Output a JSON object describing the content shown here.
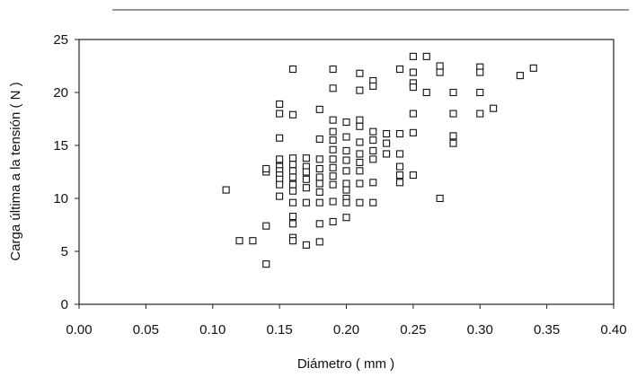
{
  "chart_data": {
    "type": "scatter",
    "title": "",
    "xlabel": "Diámetro ( mm )",
    "ylabel": "Carga última a la tensión ( N )",
    "xlim": [
      0,
      0.4
    ],
    "ylim": [
      0,
      25
    ],
    "x_ticks": [
      "0.00",
      "0.05",
      "0.10",
      "0.15",
      "0.20",
      "0.25",
      "0.30",
      "0.35",
      "0.40"
    ],
    "y_ticks": [
      "0",
      "5",
      "10",
      "15",
      "20",
      "25"
    ],
    "marker": "open-square",
    "grid": false,
    "series": [
      {
        "points": [
          [
            0.11,
            10.8
          ],
          [
            0.12,
            6.0
          ],
          [
            0.13,
            6.0
          ],
          [
            0.14,
            3.8
          ],
          [
            0.14,
            7.4
          ],
          [
            0.14,
            12.5
          ],
          [
            0.14,
            12.8
          ],
          [
            0.15,
            18.9
          ],
          [
            0.15,
            18.0
          ],
          [
            0.15,
            15.7
          ],
          [
            0.15,
            13.7
          ],
          [
            0.15,
            13.0
          ],
          [
            0.15,
            12.6
          ],
          [
            0.15,
            12.2
          ],
          [
            0.15,
            11.8
          ],
          [
            0.15,
            11.3
          ],
          [
            0.15,
            10.2
          ],
          [
            0.16,
            22.2
          ],
          [
            0.16,
            17.9
          ],
          [
            0.16,
            13.8
          ],
          [
            0.16,
            13.2
          ],
          [
            0.16,
            12.6
          ],
          [
            0.16,
            12.0
          ],
          [
            0.16,
            11.3
          ],
          [
            0.16,
            10.7
          ],
          [
            0.16,
            9.6
          ],
          [
            0.16,
            8.3
          ],
          [
            0.16,
            7.6
          ],
          [
            0.16,
            6.3
          ],
          [
            0.16,
            6.0
          ],
          [
            0.17,
            13.8
          ],
          [
            0.17,
            13.0
          ],
          [
            0.17,
            12.5
          ],
          [
            0.17,
            11.8
          ],
          [
            0.17,
            11.0
          ],
          [
            0.17,
            9.6
          ],
          [
            0.17,
            5.6
          ],
          [
            0.18,
            18.4
          ],
          [
            0.18,
            15.6
          ],
          [
            0.18,
            13.7
          ],
          [
            0.18,
            12.8
          ],
          [
            0.18,
            12.0
          ],
          [
            0.18,
            11.4
          ],
          [
            0.18,
            10.6
          ],
          [
            0.18,
            9.6
          ],
          [
            0.18,
            7.6
          ],
          [
            0.18,
            5.9
          ],
          [
            0.19,
            22.2
          ],
          [
            0.19,
            20.4
          ],
          [
            0.19,
            17.4
          ],
          [
            0.19,
            16.3
          ],
          [
            0.19,
            15.5
          ],
          [
            0.19,
            14.6
          ],
          [
            0.19,
            13.7
          ],
          [
            0.19,
            12.9
          ],
          [
            0.19,
            12.1
          ],
          [
            0.19,
            11.3
          ],
          [
            0.19,
            9.7
          ],
          [
            0.19,
            7.8
          ],
          [
            0.2,
            17.2
          ],
          [
            0.2,
            15.8
          ],
          [
            0.2,
            14.5
          ],
          [
            0.2,
            13.6
          ],
          [
            0.2,
            12.6
          ],
          [
            0.2,
            11.4
          ],
          [
            0.2,
            10.8
          ],
          [
            0.2,
            10.0
          ],
          [
            0.2,
            9.6
          ],
          [
            0.2,
            8.2
          ],
          [
            0.21,
            21.8
          ],
          [
            0.21,
            20.2
          ],
          [
            0.21,
            17.4
          ],
          [
            0.21,
            16.8
          ],
          [
            0.21,
            15.3
          ],
          [
            0.21,
            14.2
          ],
          [
            0.21,
            13.4
          ],
          [
            0.21,
            12.6
          ],
          [
            0.21,
            11.4
          ],
          [
            0.21,
            9.6
          ],
          [
            0.22,
            21.1
          ],
          [
            0.22,
            20.6
          ],
          [
            0.22,
            16.3
          ],
          [
            0.22,
            15.5
          ],
          [
            0.22,
            14.5
          ],
          [
            0.22,
            13.7
          ],
          [
            0.22,
            11.5
          ],
          [
            0.22,
            9.6
          ],
          [
            0.23,
            16.1
          ],
          [
            0.23,
            15.2
          ],
          [
            0.23,
            14.2
          ],
          [
            0.24,
            22.2
          ],
          [
            0.24,
            16.1
          ],
          [
            0.24,
            14.2
          ],
          [
            0.24,
            13.0
          ],
          [
            0.24,
            12.2
          ],
          [
            0.24,
            11.5
          ],
          [
            0.25,
            23.4
          ],
          [
            0.25,
            21.9
          ],
          [
            0.25,
            20.9
          ],
          [
            0.25,
            20.5
          ],
          [
            0.25,
            18.0
          ],
          [
            0.25,
            16.2
          ],
          [
            0.25,
            12.2
          ],
          [
            0.26,
            23.4
          ],
          [
            0.26,
            20.0
          ],
          [
            0.27,
            22.5
          ],
          [
            0.27,
            21.9
          ],
          [
            0.27,
            10.0
          ],
          [
            0.28,
            20.0
          ],
          [
            0.28,
            18.0
          ],
          [
            0.28,
            15.9
          ],
          [
            0.28,
            15.2
          ],
          [
            0.3,
            22.4
          ],
          [
            0.3,
            21.9
          ],
          [
            0.3,
            20.0
          ],
          [
            0.3,
            18.0
          ],
          [
            0.31,
            18.5
          ],
          [
            0.33,
            21.6
          ],
          [
            0.34,
            22.3
          ]
        ]
      }
    ]
  }
}
